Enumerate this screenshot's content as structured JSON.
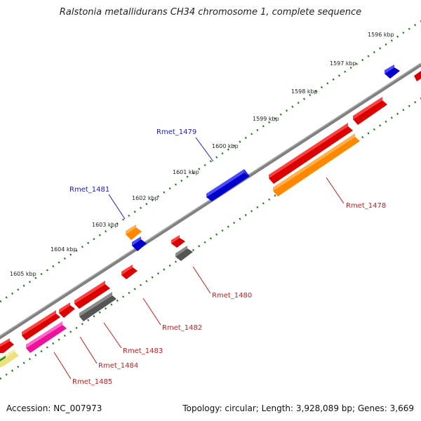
{
  "title": "Ralstonia metallidurans CH34 chromosome 1, complete sequence",
  "accession": "Accession: NC_007973",
  "summary": "Topology: circular; Length: 3,928,089 bp; Genes: 3,669",
  "colors": {
    "backbone": "#808080",
    "ticks": "#1a7a1a",
    "forward_label": "#1a1acc",
    "reverse_label": "#cc1a1a"
  },
  "ruler": [
    "1596 kbp",
    "1597 kbp",
    "1598 kbp",
    "1599 kbp",
    "1600 kbp",
    "1601 kbp",
    "1602 kbp",
    "1603 kbp",
    "1604 kbp",
    "1605 kbp"
  ],
  "gene_labels": [
    {
      "name": "Rmet_1479",
      "strand": "forward"
    },
    {
      "name": "Rmet_1481",
      "strand": "forward"
    },
    {
      "name": "Rmet_1478",
      "strand": "reverse"
    },
    {
      "name": "Rmet_1480",
      "strand": "reverse"
    },
    {
      "name": "Rmet_1482",
      "strand": "reverse"
    },
    {
      "name": "Rmet_1483",
      "strand": "reverse"
    },
    {
      "name": "Rmet_1484",
      "strand": "reverse"
    },
    {
      "name": "Rmet_1485",
      "strand": "reverse"
    }
  ]
}
